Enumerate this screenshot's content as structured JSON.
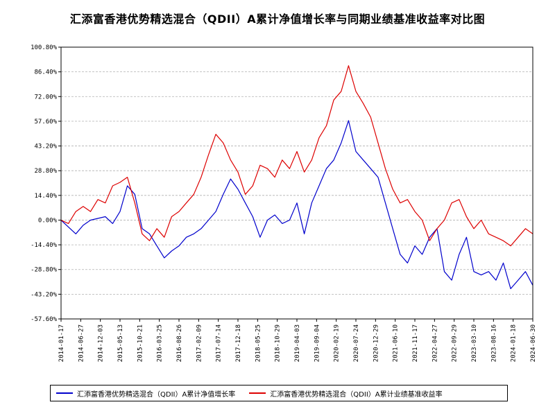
{
  "chart_data": {
    "type": "line",
    "title": "汇添富香港优势精选混合（QDII）A累计净值增长率与同期业绩基准收益率对比图",
    "y_ticks": [
      "100.80%",
      "86.40%",
      "72.00%",
      "57.60%",
      "43.20%",
      "28.80%",
      "14.40%",
      "0.00%",
      "-14.40%",
      "-28.80%",
      "-43.20%",
      "-57.60%"
    ],
    "ylim": [
      -57.6,
      100.8
    ],
    "x_ticks": [
      "2014-01-17",
      "2014-06-27",
      "2014-12-03",
      "2015-05-13",
      "2015-10-21",
      "2016-03-25",
      "2016-08-26",
      "2017-02-09",
      "2017-07-14",
      "2017-12-18",
      "2018-05-25",
      "2018-10-29",
      "2019-04-03",
      "2019-09-04",
      "2020-02-19",
      "2020-07-24",
      "2020-12-29",
      "2021-06-10",
      "2021-11-17",
      "2022-04-27",
      "2022-09-29",
      "2023-03-10",
      "2023-08-16",
      "2024-01-18",
      "2024-06-30"
    ],
    "grid": true,
    "legend_position": "bottom",
    "series": [
      {
        "name": "汇添富香港优势精选混合（QDII）A累计净值增长率",
        "color": "#0000cc",
        "values": [
          0,
          -4,
          -8,
          -3,
          0,
          1,
          2,
          -2,
          5,
          20,
          15,
          -5,
          -8,
          -15,
          -22,
          -18,
          -15,
          -10,
          -8,
          -5,
          0,
          5,
          15,
          24,
          18,
          10,
          2,
          -10,
          0,
          3,
          -2,
          0,
          10,
          -8,
          10,
          20,
          30,
          35,
          45,
          58,
          40,
          35,
          30,
          25,
          10,
          -5,
          -20,
          -25,
          -15,
          -20,
          -10,
          -5,
          -30,
          -35,
          -20,
          -10,
          -30,
          -32,
          -30,
          -35,
          -25,
          -40,
          -35,
          -30,
          -38
        ]
      },
      {
        "name": "汇添富香港优势精选混合（QDII）A累计业绩基准收益率",
        "color": "#dd0000",
        "values": [
          0,
          -2,
          5,
          8,
          5,
          12,
          10,
          20,
          22,
          25,
          10,
          -8,
          -12,
          -5,
          -10,
          2,
          5,
          10,
          15,
          25,
          38,
          50,
          45,
          35,
          28,
          15,
          20,
          32,
          30,
          25,
          35,
          30,
          40,
          28,
          35,
          48,
          55,
          70,
          75,
          90,
          75,
          68,
          60,
          45,
          30,
          18,
          10,
          12,
          5,
          0,
          -12,
          -5,
          0,
          10,
          12,
          2,
          -5,
          0,
          -8,
          -10,
          -12,
          -15,
          -10,
          -5,
          -8
        ]
      }
    ]
  }
}
